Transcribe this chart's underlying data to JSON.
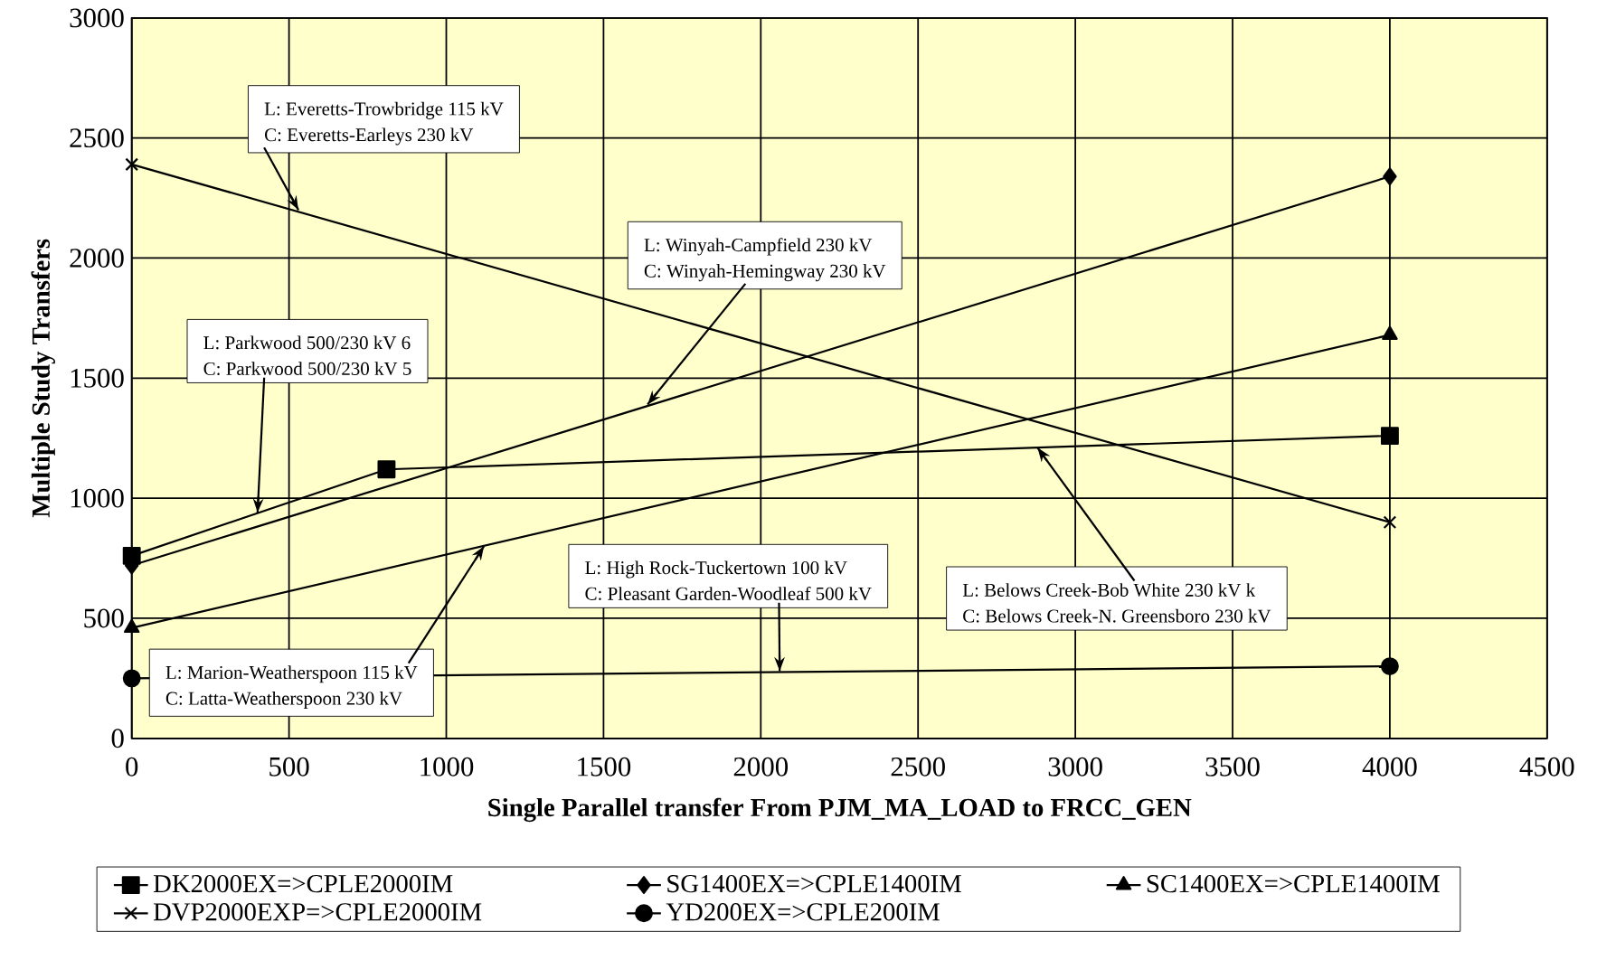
{
  "chart_data": {
    "type": "line",
    "xlabel": "Single Parallel transfer From PJM_MA_LOAD to FRCC_GEN",
    "ylabel": "Multiple Study Transfers",
    "xlim": [
      0,
      4500
    ],
    "ylim": [
      0,
      3000
    ],
    "xticks": [
      0,
      500,
      1000,
      1500,
      2000,
      2500,
      3000,
      3500,
      4000,
      4500
    ],
    "yticks": [
      0,
      500,
      1000,
      1500,
      2000,
      2500,
      3000
    ],
    "grid": true,
    "legend": "bottom",
    "series": [
      {
        "name": "DK2000EX=>CPLE2000IM",
        "color": "#000000",
        "marker": "square",
        "x": [
          0,
          810,
          4000
        ],
        "values": [
          760,
          1120,
          1260
        ]
      },
      {
        "name": "SG1400EX=>CPLE1400IM",
        "color": "#000000",
        "marker": "diamond",
        "x": [
          0,
          4000
        ],
        "values": [
          720,
          2340
        ]
      },
      {
        "name": "SC1400EX=>CPLE1400IM",
        "color": "#000000",
        "marker": "triangle",
        "x": [
          0,
          4000
        ],
        "values": [
          460,
          1680
        ]
      },
      {
        "name": "DVP2000EXP=>CPLE2000IM",
        "color": "#000000",
        "marker": "cross",
        "x": [
          0,
          4000
        ],
        "values": [
          2390,
          900
        ]
      },
      {
        "name": "YD200EX=>CPLE200IM",
        "color": "#000000",
        "marker": "circle",
        "x": [
          0,
          4000
        ],
        "values": [
          250,
          300
        ]
      }
    ],
    "annotations": [
      "L:  Everetts-Trowbridge 115 kV",
      {
        "text": "C:  Everetts-Earleys 230 kV",
        "x": 530,
        "y": 2200
      },
      "L:  Winyah-Campfield 230 kV",
      {
        "text": "C:  Winyah-Hemingway 230 kV",
        "x": 1640,
        "y": 1390
      },
      "L:  Parkwood 500/230 kV 6",
      {
        "text": "C:  Parkwood 500/230 kV 5",
        "x": 400,
        "y": 940
      },
      "L:  High Rock-Tuckertown 100 kV",
      {
        "text": "C:  Pleasant Garden-Woodleaf 500 kV",
        "x": 2060,
        "y": 280
      },
      {
        "text": "L:  Belows Creek-Bob White 230 kV k",
        "x": 2880,
        "y": 1210
      },
      "C:  Belows Creek-N. Greensboro 230 kV",
      {
        "text": "L:  Marion-Weatherspoon 115 kV",
        "x": 1120,
        "y": 800
      },
      "C:  Latta-Weatherspoon 230 kV"
    ]
  }
}
